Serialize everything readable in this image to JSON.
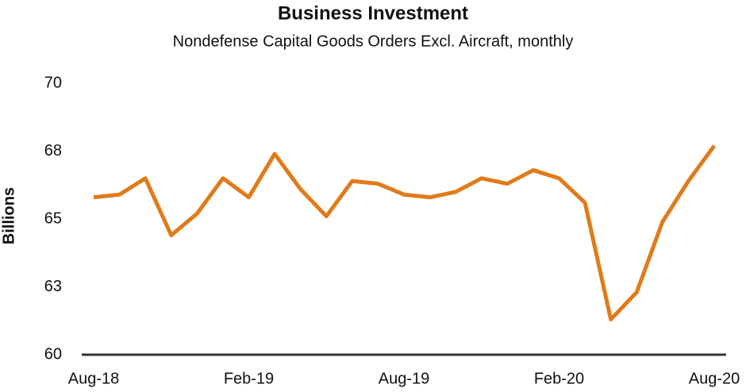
{
  "chart_data": {
    "type": "line",
    "title": "Business Investment",
    "subtitle": "Nondefense Capital Goods Orders Excl. Aircraft, monthly",
    "y_label": "Billions",
    "categories": [
      "Aug-18",
      null,
      null,
      null,
      null,
      null,
      "Feb-19",
      null,
      null,
      null,
      null,
      null,
      "Aug-19",
      null,
      null,
      null,
      null,
      null,
      "Feb-20",
      null,
      null,
      null,
      null,
      null,
      "Aug-20"
    ],
    "series": [
      {
        "name": "Nondefense Capital Goods Orders Excl. Aircraft",
        "color": "#e07b1a",
        "values": [
          65.8,
          65.9,
          66.5,
          64.4,
          65.2,
          66.5,
          65.8,
          67.4,
          66.1,
          65.1,
          66.4,
          66.3,
          65.9,
          65.8,
          66.0,
          66.5,
          66.3,
          66.8,
          66.5,
          65.6,
          61.3,
          62.3,
          64.9,
          66.4,
          67.7
        ]
      }
    ],
    "ylim": [
      60,
      70
    ],
    "yticks": [
      60,
      {
        "value": 62.5,
        "label": "63"
      },
      65,
      {
        "value": 67.5,
        "label": "68"
      },
      70
    ],
    "grid": false
  }
}
